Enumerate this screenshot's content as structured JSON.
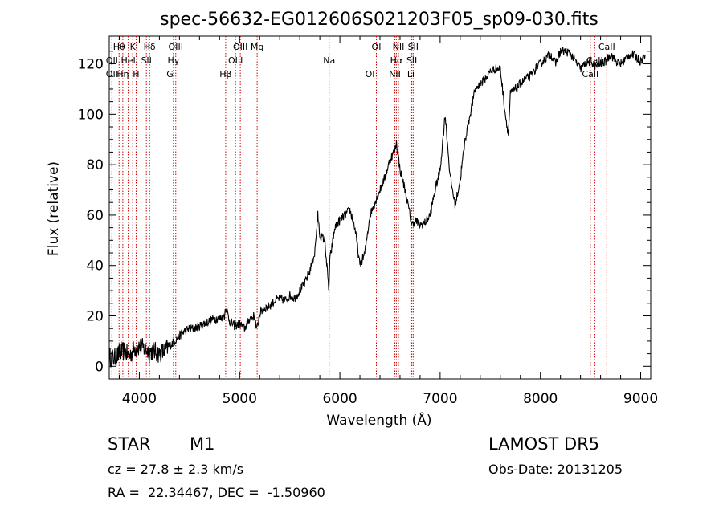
{
  "chart_data": {
    "type": "line",
    "title": "spec-56632-EG012606S021203F05_sp09-030.fits",
    "xlabel": "Wavelength (Å)",
    "ylabel": "Flux (relative)",
    "xlim": [
      3700,
      9100
    ],
    "ylim": [
      -5,
      131
    ],
    "xticks": [
      4000,
      5000,
      6000,
      7000,
      8000,
      9000
    ],
    "yticks": [
      0,
      20,
      40,
      60,
      80,
      100,
      120
    ],
    "grid": false,
    "series": [
      {
        "x": [
          3700,
          3750,
          3800,
          3850,
          3900,
          3950,
          4000,
          4050,
          4100,
          4150,
          4200,
          4250,
          4300,
          4350,
          4400,
          4450,
          4500,
          4550,
          4600,
          4650,
          4700,
          4750,
          4800,
          4850,
          4860,
          4900,
          4950,
          5000,
          5050,
          5100,
          5150,
          5170,
          5200,
          5250,
          5300,
          5350,
          5400,
          5450,
          5500,
          5550,
          5600,
          5650,
          5700,
          5750,
          5780,
          5800,
          5850,
          5890,
          5900,
          5950,
          6000,
          6050,
          6100,
          6150,
          6200,
          6250,
          6300,
          6350,
          6400,
          6450,
          6500,
          6550,
          6563,
          6580,
          6600,
          6650,
          6700,
          6720,
          6750,
          6800,
          6850,
          6900,
          6950,
          7000,
          7050,
          7100,
          7150,
          7200,
          7250,
          7300,
          7350,
          7400,
          7450,
          7500,
          7550,
          7600,
          7650,
          7680,
          7700,
          7750,
          7800,
          7850,
          7900,
          7950,
          8000,
          8050,
          8100,
          8150,
          8200,
          8250,
          8300,
          8350,
          8400,
          8450,
          8500,
          8550,
          8600,
          8650,
          8700,
          8750,
          8800,
          8850,
          8900,
          8950,
          9000,
          9050
        ],
        "y": [
          4,
          3,
          5,
          6,
          4,
          7,
          8,
          7,
          6,
          6,
          5,
          6,
          8,
          10,
          12,
          14,
          15,
          15,
          16,
          17,
          18,
          19,
          19,
          20,
          24,
          18,
          16,
          17,
          15,
          19,
          20,
          14,
          21,
          23,
          24,
          26,
          27,
          26,
          28,
          27,
          30,
          33,
          38,
          45,
          60,
          52,
          50,
          30,
          42,
          55,
          58,
          60,
          62,
          55,
          40,
          45,
          60,
          65,
          70,
          75,
          82,
          86,
          89,
          84,
          78,
          70,
          60,
          56,
          58,
          56,
          57,
          60,
          70,
          78,
          100,
          75,
          64,
          74,
          90,
          100,
          110,
          112,
          114,
          117,
          118,
          118,
          100,
          92,
          108,
          110,
          112,
          114,
          115,
          118,
          120,
          122,
          124,
          120,
          125,
          125,
          124,
          121,
          118,
          120,
          121,
          119,
          120,
          121,
          124,
          121,
          120,
          122,
          124,
          123,
          121,
          124
        ]
      }
    ],
    "lines": [
      {
        "label": "Hθ",
        "x": 3798
      },
      {
        "label": "OII",
        "x": 3727
      },
      {
        "label": "OII",
        "x": 3727
      },
      {
        "label": "K",
        "x": 3934
      },
      {
        "label": "HeI",
        "x": 3889
      },
      {
        "label": "Hη",
        "x": 3835
      },
      {
        "label": "Hδ",
        "x": 4102
      },
      {
        "label": "SII",
        "x": 4070
      },
      {
        "label": "H",
        "x": 3968
      },
      {
        "label": "OIII",
        "x": 4363
      },
      {
        "label": "Hγ",
        "x": 4340
      },
      {
        "label": "G",
        "x": 4305
      },
      {
        "label": "OIII",
        "x": 5007
      },
      {
        "label": "OIII",
        "x": 4959
      },
      {
        "label": "Hβ",
        "x": 4861
      },
      {
        "label": "Mg",
        "x": 5175
      },
      {
        "label": "Na",
        "x": 5893
      },
      {
        "label": "OI",
        "x": 6300
      },
      {
        "label": "OI",
        "x": 6364
      },
      {
        "label": "Hα",
        "x": 6563
      },
      {
        "label": "NII",
        "x": 6548
      },
      {
        "label": "NII",
        "x": 6584
      },
      {
        "label": "SII",
        "x": 6717
      },
      {
        "label": "Li",
        "x": 6708
      },
      {
        "label": "SII",
        "x": 6731
      },
      {
        "label": "CaII",
        "x": 8542
      },
      {
        "label": "CaII",
        "x": 8498
      },
      {
        "label": "CaII",
        "x": 8662
      }
    ]
  },
  "info": {
    "object_type": "STAR",
    "subclass": "M1",
    "survey": "LAMOST DR5",
    "velocity": "cz = 27.8 ± 2.3 km/s",
    "obs_date": "Obs-Date: 20131205",
    "coords": "RA =  22.34467, DEC =  -1.50960"
  },
  "colors": {
    "spectrum": "#000000",
    "lines": "#cc0000",
    "axes": "#000000",
    "background": "#ffffff"
  }
}
